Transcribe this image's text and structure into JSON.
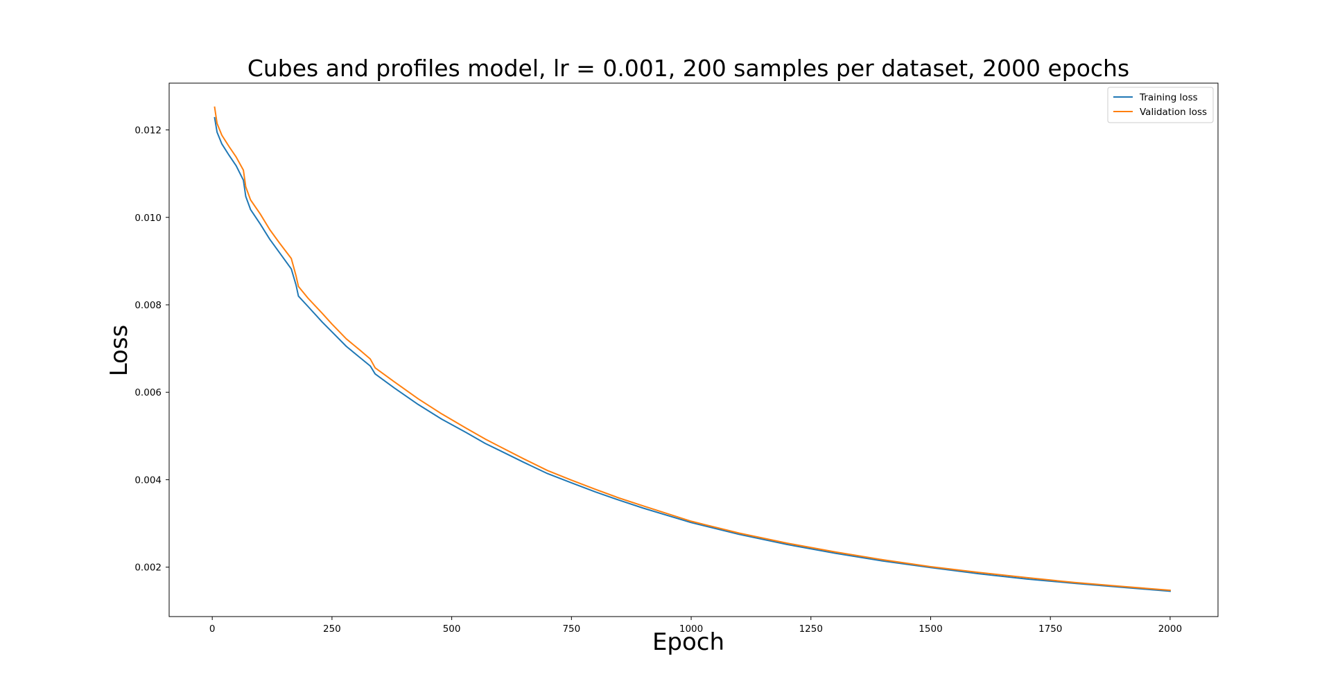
{
  "chart_data": {
    "type": "line",
    "title": "Cubes and profiles model, lr = 0.001, 200 samples per dataset, 2000 epochs",
    "xlabel": "Epoch",
    "ylabel": "Loss",
    "xlim": [
      -90,
      2100
    ],
    "ylim": [
      0.00087,
      0.01307
    ],
    "xticks": [
      0,
      250,
      500,
      750,
      1000,
      1250,
      1500,
      1750,
      2000
    ],
    "xtick_labels": [
      "0",
      "250",
      "500",
      "750",
      "1000",
      "1250",
      "1500",
      "1750",
      "2000"
    ],
    "yticks": [
      0.002,
      0.004,
      0.006,
      0.008,
      0.01,
      0.012
    ],
    "ytick_labels": [
      "0.002",
      "0.004",
      "0.006",
      "0.008",
      "0.010",
      "0.012"
    ],
    "grid": false,
    "legend_position": "top-right",
    "series": [
      {
        "name": "Training loss",
        "color": "#1f77b4",
        "x": [
          5,
          10,
          20,
          35,
          50,
          65,
          70,
          80,
          100,
          120,
          140,
          165,
          175,
          180,
          200,
          230,
          250,
          280,
          310,
          330,
          340,
          380,
          430,
          480,
          530,
          570,
          600,
          650,
          700,
          750,
          800,
          850,
          900,
          1000,
          1100,
          1200,
          1300,
          1400,
          1500,
          1600,
          1700,
          1800,
          1900,
          2000
        ],
        "y": [
          0.01228,
          0.01195,
          0.01168,
          0.01142,
          0.01118,
          0.01085,
          0.01048,
          0.01018,
          0.00985,
          0.0095,
          0.0092,
          0.00882,
          0.00845,
          0.0082,
          0.00796,
          0.0076,
          0.00738,
          0.00705,
          0.00678,
          0.0066,
          0.00642,
          0.0061,
          0.00572,
          0.00538,
          0.00508,
          0.00483,
          0.00467,
          0.0044,
          0.00414,
          0.00393,
          0.00372,
          0.00353,
          0.00335,
          0.00302,
          0.00275,
          0.00252,
          0.00232,
          0.00214,
          0.00199,
          0.00185,
          0.00173,
          0.00163,
          0.00154,
          0.00145
        ]
      },
      {
        "name": "Validation loss",
        "color": "#ff7f0e",
        "x": [
          5,
          10,
          20,
          35,
          50,
          65,
          70,
          80,
          100,
          120,
          140,
          165,
          175,
          180,
          200,
          230,
          250,
          280,
          310,
          330,
          340,
          380,
          430,
          480,
          530,
          570,
          600,
          650,
          700,
          750,
          800,
          850,
          900,
          1000,
          1100,
          1200,
          1300,
          1400,
          1500,
          1600,
          1700,
          1800,
          1900,
          2000
        ],
        "y": [
          0.01252,
          0.01215,
          0.01188,
          0.01162,
          0.01138,
          0.01108,
          0.0107,
          0.0104,
          0.01008,
          0.00972,
          0.00942,
          0.00906,
          0.00866,
          0.00842,
          0.00815,
          0.0078,
          0.00756,
          0.00722,
          0.00695,
          0.00676,
          0.00656,
          0.00624,
          0.00585,
          0.0055,
          0.00518,
          0.00493,
          0.00476,
          0.00448,
          0.00421,
          0.00399,
          0.00378,
          0.00358,
          0.0034,
          0.00305,
          0.00278,
          0.00255,
          0.00235,
          0.00217,
          0.00201,
          0.00188,
          0.00176,
          0.00165,
          0.00156,
          0.00147
        ]
      }
    ]
  }
}
